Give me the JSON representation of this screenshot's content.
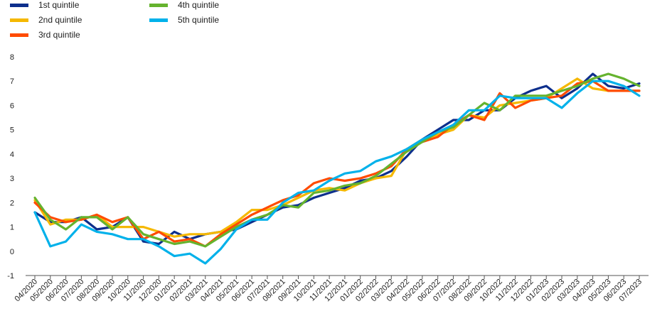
{
  "chart_data": {
    "type": "line",
    "title": "",
    "xlabel": "",
    "ylabel": "",
    "ylim": [
      -1,
      8
    ],
    "yticks": [
      "8",
      "7",
      "6",
      "5",
      "4",
      "3",
      "2",
      "1",
      "0",
      "-1"
    ],
    "grid": false,
    "legend_position": "top-left",
    "categories": [
      "04/2020",
      "05/2020",
      "06/2020",
      "07/2020",
      "08/2020",
      "09/2020",
      "10/2020",
      "11/2020",
      "12/2020",
      "01/2021",
      "02/2021",
      "03/2021",
      "04/2021",
      "05/2021",
      "06/2021",
      "07/2021",
      "08/2021",
      "09/2021",
      "10/2021",
      "11/2021",
      "12/2021",
      "01/2022",
      "02/2022",
      "03/2022",
      "04/2022",
      "05/2022",
      "06/2022",
      "07/2022",
      "08/2022",
      "09/2022",
      "10/2022",
      "11/2022",
      "12/2022",
      "01/2023",
      "02/2023",
      "03/2023",
      "04/2023",
      "05/2023",
      "06/2023",
      "07/2023"
    ],
    "series": [
      {
        "name": "1st quintile",
        "color": "#0d2f8c",
        "values": [
          1.6,
          1.2,
          1.2,
          1.4,
          0.9,
          1.0,
          1.4,
          0.4,
          0.3,
          0.8,
          0.5,
          0.7,
          0.8,
          0.9,
          1.2,
          1.5,
          1.8,
          1.9,
          2.2,
          2.4,
          2.6,
          2.9,
          3.0,
          3.3,
          3.9,
          4.6,
          5.0,
          5.4,
          5.4,
          5.8,
          5.8,
          6.3,
          6.6,
          6.8,
          6.3,
          6.7,
          7.3,
          6.8,
          6.7,
          6.9
        ]
      },
      {
        "name": "2nd quintile",
        "color": "#f5b800",
        "values": [
          2.1,
          1.1,
          1.3,
          1.3,
          1.5,
          1.0,
          1.0,
          1.0,
          0.8,
          0.6,
          0.7,
          0.7,
          0.8,
          1.2,
          1.7,
          1.7,
          1.9,
          2.2,
          2.5,
          2.6,
          2.5,
          2.8,
          3.0,
          3.1,
          4.2,
          4.6,
          4.8,
          5.0,
          5.6,
          5.5,
          6.0,
          6.1,
          6.2,
          6.3,
          6.7,
          7.1,
          6.7,
          6.6,
          6.6,
          6.6
        ]
      },
      {
        "name": "3rd quintile",
        "color": "#ff4b00",
        "values": [
          2.0,
          1.4,
          1.2,
          1.3,
          1.5,
          1.2,
          1.4,
          0.5,
          0.8,
          0.4,
          0.5,
          0.2,
          0.7,
          1.1,
          1.5,
          1.8,
          2.1,
          2.3,
          2.8,
          3.0,
          2.9,
          3.0,
          3.2,
          3.5,
          4.2,
          4.5,
          4.7,
          5.2,
          5.6,
          5.4,
          6.5,
          5.9,
          6.2,
          6.3,
          6.4,
          6.9,
          7.0,
          6.6,
          6.6,
          6.6
        ]
      },
      {
        "name": "4th quintile",
        "color": "#65b32e",
        "values": [
          2.2,
          1.3,
          0.9,
          1.4,
          1.4,
          0.9,
          1.4,
          0.7,
          0.5,
          0.3,
          0.4,
          0.2,
          0.6,
          1.0,
          1.3,
          1.5,
          1.9,
          1.8,
          2.4,
          2.5,
          2.7,
          2.8,
          3.1,
          3.6,
          4.1,
          4.5,
          4.9,
          5.1,
          5.6,
          6.1,
          5.8,
          6.4,
          6.4,
          6.4,
          6.6,
          6.8,
          7.1,
          7.3,
          7.1,
          6.8
        ]
      },
      {
        "name": "5th quintile",
        "color": "#00b1ea",
        "values": [
          1.6,
          0.2,
          0.4,
          1.1,
          0.8,
          0.7,
          0.5,
          0.5,
          0.2,
          -0.2,
          -0.1,
          -0.5,
          0.1,
          0.9,
          1.3,
          1.3,
          2.0,
          2.4,
          2.5,
          2.9,
          3.2,
          3.3,
          3.7,
          3.9,
          4.2,
          4.6,
          4.9,
          5.2,
          5.8,
          5.8,
          6.4,
          6.3,
          6.3,
          6.3,
          5.9,
          6.5,
          7.0,
          7.0,
          6.8,
          6.4
        ]
      }
    ]
  }
}
